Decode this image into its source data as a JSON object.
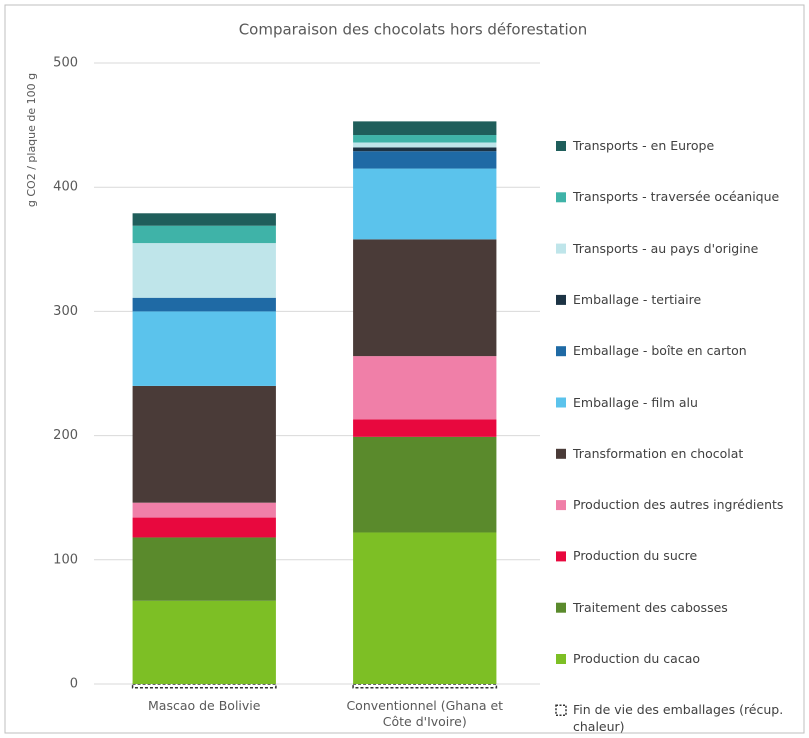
{
  "chart_data": {
    "type": "stacked_bar",
    "title": "Comparaison des chocolats hors déforestation",
    "y_label": "g CO2 / plaque de 100 g",
    "categories": [
      "Mascao de Bolivie",
      "Conventionnel (Ghana et Côte d'Ivoire)"
    ],
    "ylim": [
      0,
      500
    ],
    "yticks": [
      0,
      100,
      200,
      300,
      400,
      500
    ],
    "grid": true,
    "series": [
      {
        "name": "Transports - en Europe",
        "color": "#1f5e5b",
        "values": [
          10,
          11
        ]
      },
      {
        "name": "Transports - traversée océanique",
        "color": "#3fb3a8",
        "values": [
          14,
          6
        ]
      },
      {
        "name": "Transports - au pays d'origine",
        "color": "#bfe5ea",
        "values": [
          44,
          4
        ]
      },
      {
        "name": "Emballage - tertiaire",
        "color": "#1c3344",
        "values": [
          0,
          3
        ]
      },
      {
        "name": "Emballage - boîte en carton",
        "color": "#1f6aa5",
        "values": [
          11,
          14
        ]
      },
      {
        "name": "Emballage - film alu",
        "color": "#5bc3ec",
        "values": [
          60,
          57
        ]
      },
      {
        "name": "Transformation en chocolat",
        "color": "#4a3b38",
        "values": [
          94,
          94
        ]
      },
      {
        "name": "Production des autres ingrédients",
        "color": "#f07fa8",
        "values": [
          12,
          51
        ]
      },
      {
        "name": "Production du sucre",
        "color": "#e8083e",
        "values": [
          16,
          14
        ]
      },
      {
        "name": "Traitement des cabosses",
        "color": "#5a8a2c",
        "values": [
          51,
          77
        ]
      },
      {
        "name": "Production du cacao",
        "color": "#7dbf25",
        "values": [
          67,
          122
        ]
      },
      {
        "name": "Fin de vie des emballages (récup. chaleur)",
        "color": "#333333",
        "values": [
          -3,
          -3
        ]
      }
    ]
  }
}
